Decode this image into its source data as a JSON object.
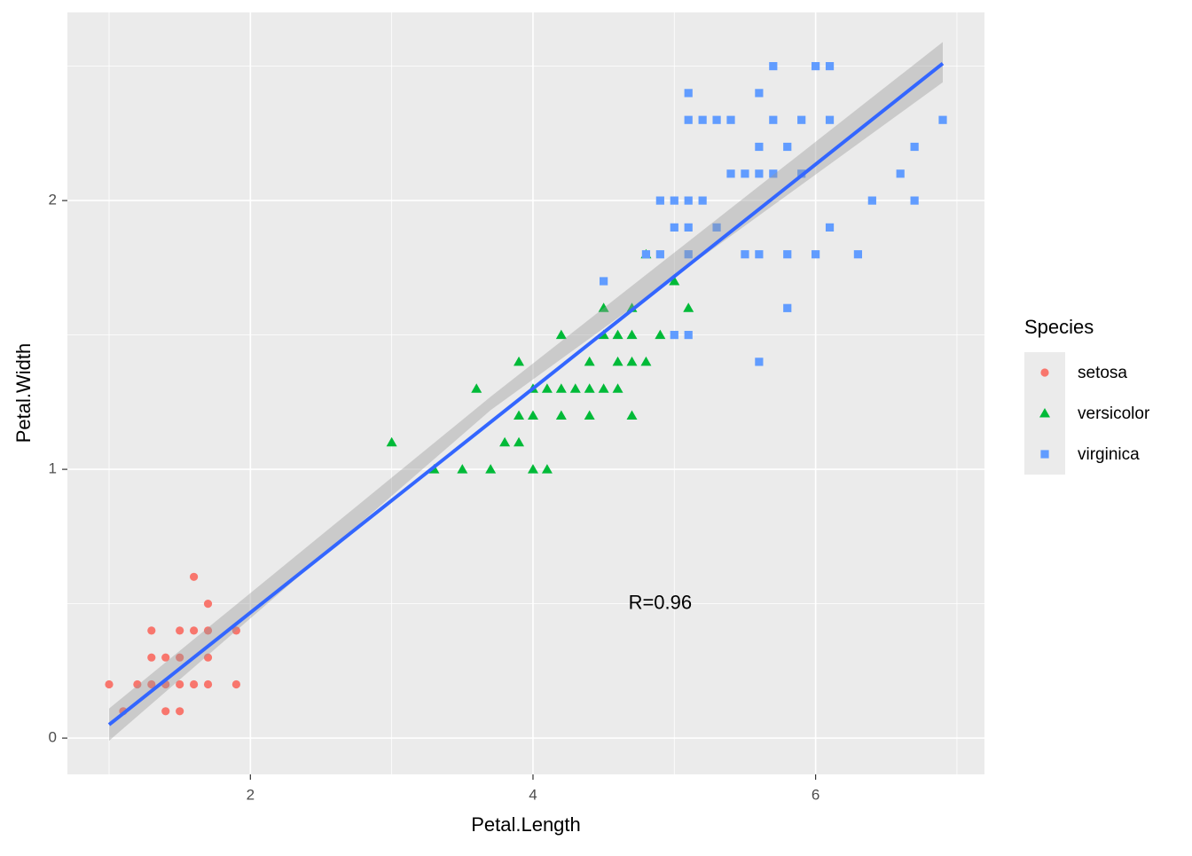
{
  "chart_data": {
    "type": "scatter",
    "xlabel": "Petal.Length",
    "ylabel": "Petal.Width",
    "xlim": [
      0.705,
      7.195
    ],
    "ylim": [
      -0.135,
      2.7
    ],
    "xticks": [
      2,
      4,
      6
    ],
    "yticks": [
      0,
      1,
      2
    ],
    "xminor": [
      1,
      3,
      5,
      7
    ],
    "yminor": [
      0.5,
      1.5,
      2.5
    ],
    "grid": true,
    "legend_title": "Species",
    "legend": "right",
    "series": [
      {
        "name": "setosa",
        "color": "#F8766D",
        "shape": "circle",
        "x": [
          1.0,
          1.1,
          1.2,
          1.3,
          1.3,
          1.3,
          1.4,
          1.4,
          1.4,
          1.5,
          1.5,
          1.5,
          1.5,
          1.6,
          1.6,
          1.6,
          1.7,
          1.7,
          1.7,
          1.7,
          1.9,
          1.9
        ],
        "values": [
          0.2,
          0.1,
          0.2,
          0.2,
          0.3,
          0.4,
          0.1,
          0.2,
          0.3,
          0.1,
          0.2,
          0.3,
          0.4,
          0.2,
          0.4,
          0.6,
          0.2,
          0.3,
          0.4,
          0.5,
          0.2,
          0.4
        ]
      },
      {
        "name": "versicolor",
        "color": "#00BA38",
        "shape": "triangle",
        "x": [
          3.0,
          3.3,
          3.5,
          3.6,
          3.7,
          3.8,
          3.9,
          3.9,
          3.9,
          4.0,
          4.0,
          4.0,
          4.1,
          4.1,
          4.2,
          4.2,
          4.2,
          4.3,
          4.4,
          4.4,
          4.4,
          4.5,
          4.5,
          4.5,
          4.6,
          4.6,
          4.6,
          4.7,
          4.7,
          4.7,
          4.7,
          4.8,
          4.8,
          4.9,
          5.0,
          5.1
        ],
        "values": [
          1.1,
          1.0,
          1.0,
          1.3,
          1.0,
          1.1,
          1.1,
          1.2,
          1.4,
          1.0,
          1.2,
          1.3,
          1.0,
          1.3,
          1.2,
          1.3,
          1.5,
          1.3,
          1.2,
          1.3,
          1.4,
          1.3,
          1.5,
          1.6,
          1.3,
          1.4,
          1.5,
          1.2,
          1.4,
          1.5,
          1.6,
          1.4,
          1.8,
          1.5,
          1.7,
          1.6
        ]
      },
      {
        "name": "virginica",
        "color": "#619CFF",
        "shape": "square",
        "x": [
          4.5,
          4.8,
          4.9,
          4.9,
          5.0,
          5.0,
          5.0,
          5.1,
          5.1,
          5.1,
          5.1,
          5.1,
          5.1,
          5.2,
          5.2,
          5.3,
          5.3,
          5.4,
          5.4,
          5.5,
          5.5,
          5.6,
          5.6,
          5.6,
          5.6,
          5.6,
          5.7,
          5.7,
          5.7,
          5.8,
          5.8,
          5.8,
          5.9,
          5.9,
          6.0,
          6.0,
          6.1,
          6.1,
          6.1,
          6.3,
          6.4,
          6.6,
          6.7,
          6.7,
          6.9
        ],
        "values": [
          1.7,
          1.8,
          1.8,
          2.0,
          1.5,
          1.9,
          2.0,
          1.5,
          1.8,
          1.9,
          2.0,
          2.3,
          2.4,
          2.0,
          2.3,
          1.9,
          2.3,
          2.1,
          2.3,
          1.8,
          2.1,
          1.4,
          1.8,
          2.1,
          2.2,
          2.4,
          2.1,
          2.3,
          2.5,
          1.6,
          1.8,
          2.2,
          2.1,
          2.3,
          1.8,
          2.5,
          1.9,
          2.3,
          2.5,
          1.8,
          2.0,
          2.1,
          2.0,
          2.2,
          2.3
        ]
      }
    ],
    "fit": {
      "color": "#3366FF",
      "x": [
        1.0,
        6.9
      ],
      "values": [
        0.05,
        2.51
      ]
    },
    "band": {
      "x": [
        1.0,
        3.7,
        6.9
      ],
      "lower": [
        -0.01,
        1.22,
        2.44
      ],
      "upper": [
        0.11,
        1.27,
        2.59
      ]
    },
    "annotation": {
      "text": "R=0.96",
      "x": 4.9,
      "y": 0.5
    }
  }
}
